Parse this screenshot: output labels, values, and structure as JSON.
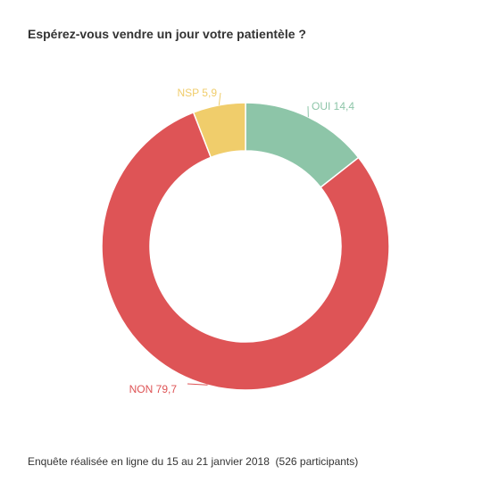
{
  "chart_data": {
    "type": "pie",
    "title": "Espérez-vous vendre un jour votre patientèle ?",
    "donut": true,
    "slices": [
      {
        "label": "OUI",
        "value": 14.4,
        "value_text": "14,4",
        "color": "#8dc5a8"
      },
      {
        "label": "NON",
        "value": 79.7,
        "value_text": "79,7",
        "color": "#de5456"
      },
      {
        "label": "NSP",
        "value": 5.9,
        "value_text": "5,9",
        "color": "#f0cd6b"
      }
    ]
  },
  "footnote": "Enquête réalisée en ligne du 15 au 21 janvier 2018  (526 participants)"
}
